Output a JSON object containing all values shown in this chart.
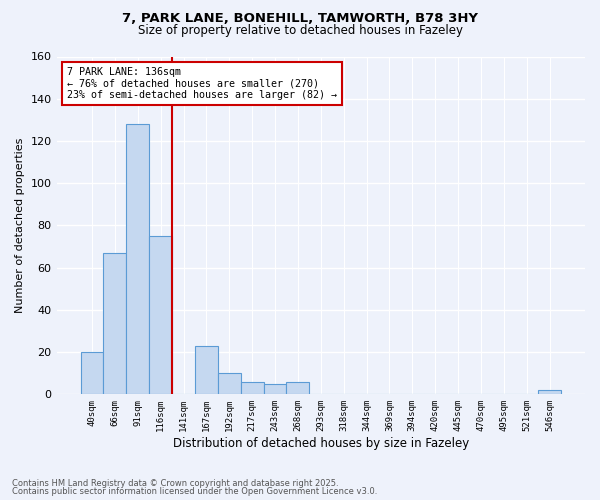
{
  "title_line1": "7, PARK LANE, BONEHILL, TAMWORTH, B78 3HY",
  "title_line2": "Size of property relative to detached houses in Fazeley",
  "xlabel": "Distribution of detached houses by size in Fazeley",
  "ylabel": "Number of detached properties",
  "bar_labels": [
    "40sqm",
    "66sqm",
    "91sqm",
    "116sqm",
    "141sqm",
    "167sqm",
    "192sqm",
    "217sqm",
    "243sqm",
    "268sqm",
    "293sqm",
    "318sqm",
    "344sqm",
    "369sqm",
    "394sqm",
    "420sqm",
    "445sqm",
    "470sqm",
    "495sqm",
    "521sqm",
    "546sqm"
  ],
  "bar_values": [
    20,
    67,
    128,
    75,
    0,
    23,
    10,
    6,
    5,
    6,
    0,
    0,
    0,
    0,
    0,
    0,
    0,
    0,
    0,
    0,
    2
  ],
  "bar_color": "#c5d8f0",
  "bar_edge_color": "#5b9bd5",
  "background_color": "#eef2fb",
  "grid_color": "#ffffff",
  "red_line_x": 3.5,
  "annotation_title": "7 PARK LANE: 136sqm",
  "annotation_line1": "← 76% of detached houses are smaller (270)",
  "annotation_line2": "23% of semi-detached houses are larger (82) →",
  "annotation_box_color": "#ffffff",
  "annotation_box_edge": "#cc0000",
  "red_line_color": "#cc0000",
  "footer_line1": "Contains HM Land Registry data © Crown copyright and database right 2025.",
  "footer_line2": "Contains public sector information licensed under the Open Government Licence v3.0.",
  "ylim": [
    0,
    160
  ],
  "yticks": [
    0,
    20,
    40,
    60,
    80,
    100,
    120,
    140,
    160
  ]
}
